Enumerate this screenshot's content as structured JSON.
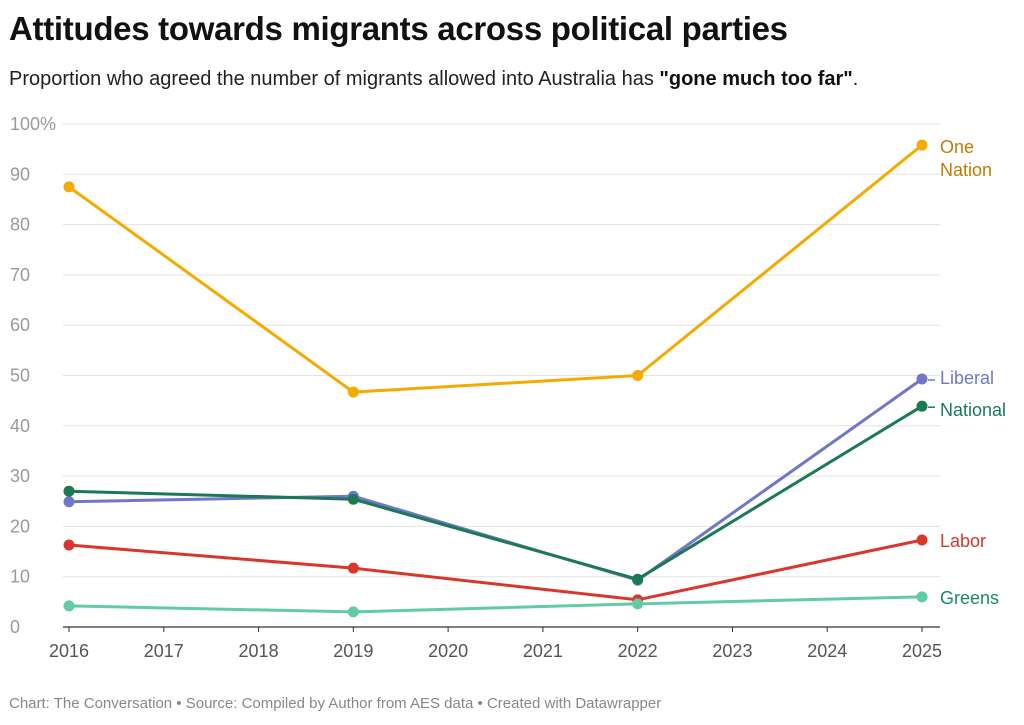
{
  "title": "Attitudes towards migrants across political parties",
  "subtitle_pre": "Proportion who agreed the number of migrants allowed into Australia has ",
  "subtitle_bold": "\"gone much too far\"",
  "subtitle_post": ".",
  "footer": "Chart: The Conversation • Source: Compiled by Author from AES data • Created with Datawrapper",
  "chart_data": {
    "type": "line",
    "title": "Attitudes towards migrants across political parties",
    "x": [
      2016,
      2019,
      2022,
      2025
    ],
    "x_ticks": [
      "2016",
      "2017",
      "2018",
      "2019",
      "2020",
      "2021",
      "2022",
      "2023",
      "2024",
      "2025"
    ],
    "y_ticks": [
      "0",
      "10",
      "20",
      "30",
      "40",
      "50",
      "60",
      "70",
      "80",
      "90",
      "100%"
    ],
    "ylim": [
      0,
      100
    ],
    "grid": true,
    "legend": "direct labels at right",
    "series": [
      {
        "name": "One Nation",
        "label_lines": [
          "One",
          "Nation"
        ],
        "values": [
          87.5,
          46.7,
          50.0,
          95.8
        ],
        "color": "#f5aa00",
        "label_color": "#c27b00"
      },
      {
        "name": "Liberal",
        "label_lines": [
          "Liberal"
        ],
        "values": [
          24.9,
          26.0,
          9.3,
          49.3
        ],
        "color": "#7077c8",
        "label_color": "#7077c8"
      },
      {
        "name": "National",
        "label_lines": [
          "National"
        ],
        "values": [
          27.0,
          25.4,
          9.5,
          43.9
        ],
        "color": "#1b7a55",
        "label_color": "#1b7a55"
      },
      {
        "name": "Labor",
        "label_lines": [
          "Labor"
        ],
        "values": [
          16.3,
          11.7,
          5.4,
          17.3
        ],
        "color": "#d9372b",
        "label_color": "#d9372b"
      },
      {
        "name": "Greens",
        "label_lines": [
          "Greens"
        ],
        "values": [
          4.2,
          3.0,
          4.6,
          6.0
        ],
        "color": "#62cba6",
        "label_color": "#1d8a63"
      }
    ]
  }
}
